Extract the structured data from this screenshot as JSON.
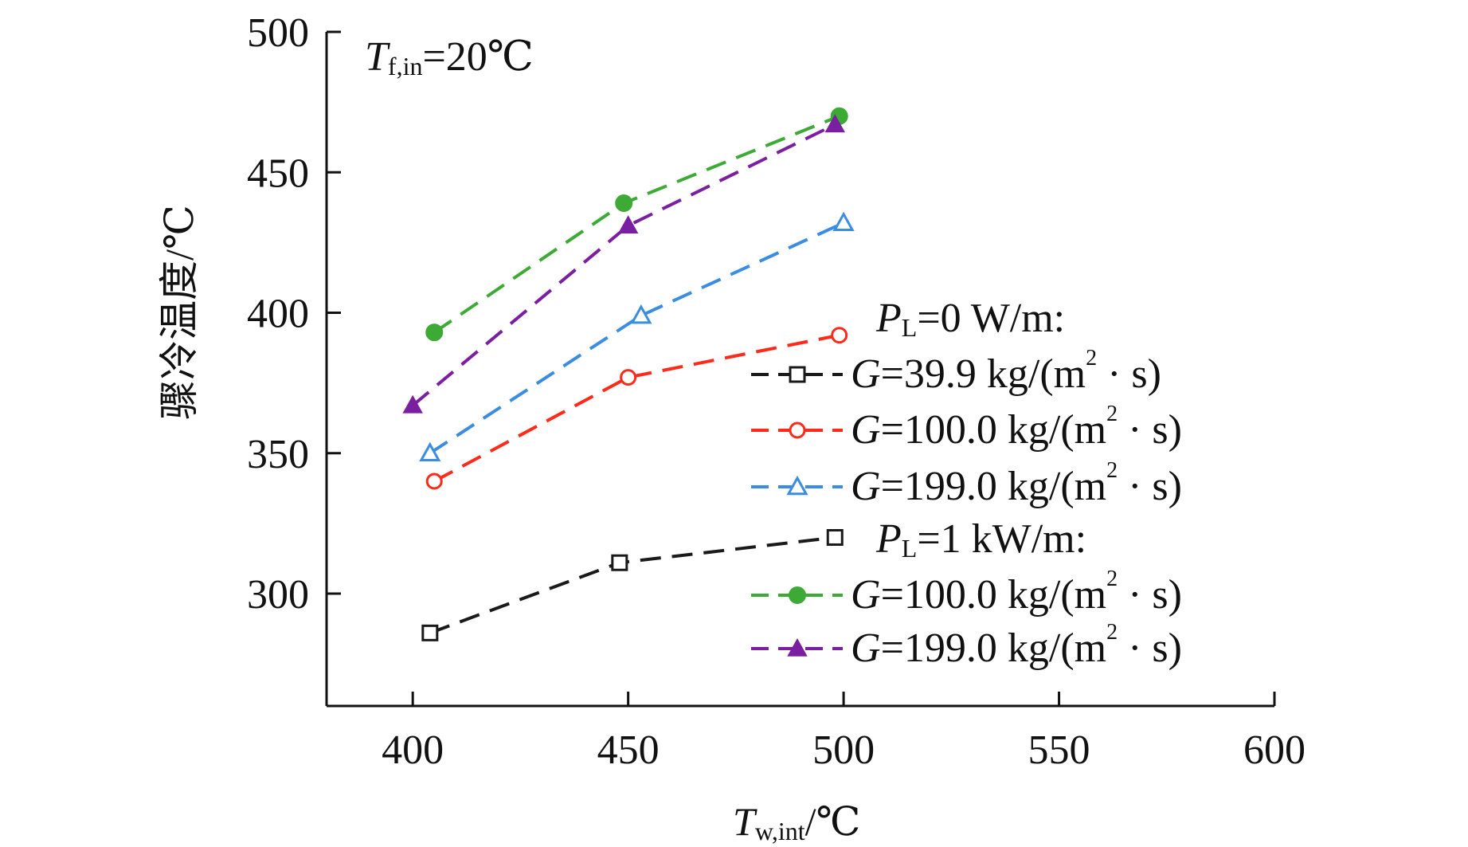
{
  "chart_data": {
    "type": "line",
    "title": "",
    "annotation": {
      "var": "T",
      "sub": "f,in",
      "rest": "=20℃"
    },
    "xlabel": {
      "var": "T",
      "sub": "w,int",
      "rest": "/℃"
    },
    "ylabel": "骤冷温度/℃",
    "xlim": [
      380,
      600
    ],
    "ylim": [
      260,
      500
    ],
    "xticks": [
      400,
      450,
      500,
      550,
      600
    ],
    "yticks": [
      300,
      350,
      400,
      450,
      500
    ],
    "grid": false,
    "legend_placement": "right",
    "legend_groups": [
      {
        "var": "P",
        "sub": "L",
        "rest": "=0 W/m:",
        "series_indices": [
          0,
          1,
          2
        ]
      },
      {
        "var": "P",
        "sub": "L",
        "rest": "=1 kW/m:",
        "series_indices": [
          3,
          4
        ]
      }
    ],
    "series": [
      {
        "name_var": "G",
        "name_rest": "=39.9 kg/(m",
        "name_sup": "2",
        "name_tail": " · s)",
        "color": "#1a1a1a",
        "marker": "square-open",
        "x": [
          404,
          448,
          498
        ],
        "y": [
          286,
          311,
          320
        ]
      },
      {
        "name_var": "G",
        "name_rest": "=100.0 kg/(m",
        "name_sup": "2",
        "name_tail": " · s)",
        "color": "#ff2a1a",
        "marker": "circle-open",
        "x": [
          405,
          450,
          499
        ],
        "y": [
          340,
          377,
          392
        ]
      },
      {
        "name_var": "G",
        "name_rest": "=199.0 kg/(m",
        "name_sup": "2",
        "name_tail": " · s)",
        "color": "#3a8de0",
        "marker": "triangle-open",
        "x": [
          404,
          453,
          500
        ],
        "y": [
          350,
          399,
          432
        ]
      },
      {
        "name_var": "G",
        "name_rest": "=100.0 kg/(m",
        "name_sup": "2",
        "name_tail": " · s)",
        "color": "#3daa35",
        "marker": "circle-filled",
        "x": [
          405,
          449,
          499
        ],
        "y": [
          393,
          439,
          470
        ]
      },
      {
        "name_var": "G",
        "name_rest": "=199.0 kg/(m",
        "name_sup": "2",
        "name_tail": " · s)",
        "color": "#7b1fa2",
        "marker": "triangle-filled",
        "x": [
          400,
          450,
          498
        ],
        "y": [
          367,
          431,
          467
        ]
      }
    ]
  }
}
